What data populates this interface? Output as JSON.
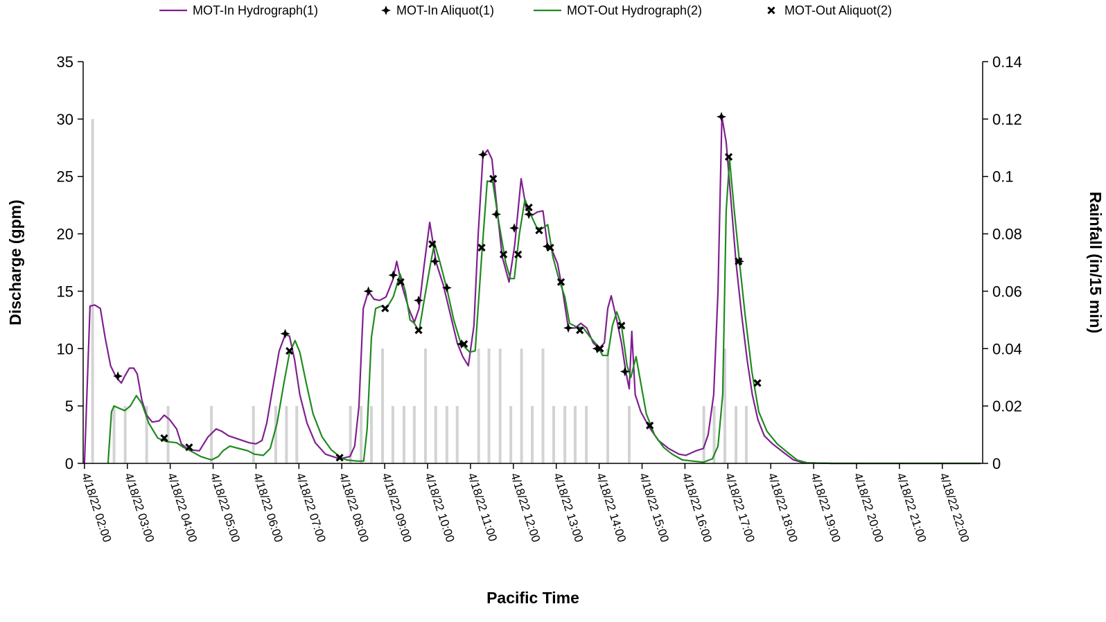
{
  "chart_data": {
    "type": "line",
    "y_label": "Discharge (gpm)",
    "y2_label": "Rainfall (in/15 min)",
    "x_label": "Pacific Time",
    "xlim": [
      1.97,
      22.94
    ],
    "xticks": [
      {
        "value": 2,
        "label": "4/18/22 02:00"
      },
      {
        "value": 3,
        "label": "4/18/22 03:00"
      },
      {
        "value": 4,
        "label": "4/18/22 04:00"
      },
      {
        "value": 5,
        "label": "4/18/22 05:00"
      },
      {
        "value": 6,
        "label": "4/18/22 06:00"
      },
      {
        "value": 7,
        "label": "4/18/22 07:00"
      },
      {
        "value": 8,
        "label": "4/18/22 08:00"
      },
      {
        "value": 9,
        "label": "4/18/22 09:00"
      },
      {
        "value": 10,
        "label": "4/18/22 10:00"
      },
      {
        "value": 11,
        "label": "4/18/22 11:00"
      },
      {
        "value": 12,
        "label": "4/18/22 12:00"
      },
      {
        "value": 13,
        "label": "4/18/22 13:00"
      },
      {
        "value": 14,
        "label": "4/18/22 14:00"
      },
      {
        "value": 15,
        "label": "4/18/22 15:00"
      },
      {
        "value": 16,
        "label": "4/18/22 16:00"
      },
      {
        "value": 17,
        "label": "4/18/22 17:00"
      },
      {
        "value": 18,
        "label": "4/18/22 18:00"
      },
      {
        "value": 19,
        "label": "4/18/22 19:00"
      },
      {
        "value": 20,
        "label": "4/18/22 20:00"
      },
      {
        "value": 21,
        "label": "4/18/22 21:00"
      },
      {
        "value": 22,
        "label": "4/18/22 22:00"
      }
    ],
    "ylim": [
      0,
      35
    ],
    "yticks": [
      0,
      5,
      10,
      15,
      20,
      25,
      30,
      35
    ],
    "y2lim": [
      0,
      0.14
    ],
    "y2ticks": [
      0,
      0.02,
      0.04,
      0.06,
      0.08,
      0.1,
      0.12,
      0.14
    ],
    "series": [
      {
        "type": "bar",
        "axis": "y2",
        "color": "#d3d3d3",
        "x": [
          2.19,
          2.69,
          2.95,
          3.45,
          3.95,
          4.96,
          5.94,
          6.46,
          6.71,
          6.95,
          8.2,
          8.45,
          8.69,
          8.95,
          9.19,
          9.45,
          9.69,
          9.95,
          10.19,
          10.45,
          10.69,
          11.19,
          11.43,
          11.69,
          11.94,
          12.19,
          12.44,
          12.69,
          12.94,
          13.2,
          13.44,
          13.7,
          14.2,
          14.7,
          16.44,
          16.68,
          16.93,
          17.19,
          17.43
        ],
        "values": [
          0.12,
          0.02,
          0.02,
          0.02,
          0.02,
          0.02,
          0.02,
          0.02,
          0.02,
          0.02,
          0.02,
          0.02,
          0.02,
          0.04,
          0.02,
          0.02,
          0.02,
          0.04,
          0.02,
          0.02,
          0.02,
          0.04,
          0.04,
          0.04,
          0.02,
          0.04,
          0.02,
          0.04,
          0.02,
          0.02,
          0.02,
          0.02,
          0.04,
          0.02,
          0.02,
          0.02,
          0.04,
          0.02,
          0.02
        ]
      },
      {
        "type": "line",
        "name": "MOT-In Hydrograph(1)",
        "color": "#7f1f8f",
        "x": [
          2.0,
          2.13,
          2.24,
          2.37,
          2.48,
          2.61,
          2.74,
          2.86,
          2.94,
          3.05,
          3.15,
          3.23,
          3.34,
          3.45,
          3.58,
          3.74,
          3.86,
          3.99,
          4.15,
          4.26,
          4.42,
          4.68,
          4.88,
          5.07,
          5.2,
          5.36,
          5.6,
          5.84,
          6.0,
          6.14,
          6.25,
          6.41,
          6.54,
          6.68,
          6.78,
          6.9,
          7.02,
          7.19,
          7.38,
          7.62,
          7.95,
          8.19,
          8.3,
          8.4,
          8.5,
          8.62,
          8.75,
          8.88,
          9.03,
          9.19,
          9.28,
          9.4,
          9.56,
          9.69,
          9.8,
          9.91,
          10.05,
          10.2,
          10.37,
          10.53,
          10.69,
          10.82,
          10.95,
          11.08,
          11.18,
          11.29,
          11.4,
          11.5,
          11.61,
          11.74,
          11.9,
          12.03,
          12.18,
          12.3,
          12.43,
          12.56,
          12.69,
          12.8,
          12.9,
          13.03,
          13.15,
          13.28,
          13.44,
          13.57,
          13.71,
          13.86,
          14.0,
          14.12,
          14.2,
          14.28,
          14.41,
          14.52,
          14.62,
          14.7,
          14.76,
          14.84,
          14.97,
          15.16,
          15.38,
          15.62,
          15.86,
          16.02,
          16.26,
          16.43,
          16.54,
          16.67,
          16.77,
          16.86,
          16.96,
          17.07,
          17.19,
          17.32,
          17.45,
          17.57,
          17.7,
          17.85,
          18.04,
          18.28,
          18.53,
          18.77,
          19.42,
          22.89
        ],
        "values": [
          0,
          13.7,
          13.8,
          13.5,
          11,
          8.5,
          7.5,
          7,
          7.6,
          8.3,
          8.3,
          7.8,
          5.5,
          4.2,
          3.6,
          3.7,
          4.2,
          3.8,
          3,
          1.7,
          1.2,
          1.1,
          2.3,
          3.0,
          2.8,
          2.4,
          2.1,
          1.8,
          1.7,
          2.0,
          3.5,
          7,
          9.8,
          11.2,
          11.1,
          9,
          6,
          3.5,
          1.8,
          0.8,
          0.4,
          0.6,
          1.5,
          5,
          13.5,
          15,
          14.3,
          14.2,
          14.5,
          16,
          17.6,
          15.5,
          13.5,
          12.3,
          13.5,
          17,
          21,
          17.5,
          15.5,
          13,
          10.5,
          9.3,
          8.5,
          12,
          20,
          26.8,
          27.3,
          26.5,
          22.5,
          18,
          15.8,
          19,
          24.8,
          22.2,
          21.6,
          21.9,
          22.0,
          18.8,
          18.6,
          17.4,
          15,
          11.8,
          11.8,
          12.2,
          11.8,
          10.5,
          10,
          10.5,
          13.5,
          14.6,
          12.5,
          10.5,
          8,
          6.5,
          11.5,
          6,
          4.5,
          3.2,
          2,
          1.3,
          0.8,
          0.7,
          1.1,
          1.3,
          2.5,
          6,
          15,
          30.2,
          28,
          23,
          17.5,
          13,
          9,
          6,
          3.8,
          2.4,
          1.7,
          1.0,
          0.3,
          0.05,
          0,
          0
        ]
      },
      {
        "type": "scatter",
        "marker": "star",
        "name": "MOT-In Aliquot(1)",
        "color": "#000000",
        "x": [
          2.78,
          6.68,
          8.62,
          9.2,
          9.79,
          10.17,
          10.45,
          10.79,
          11.29,
          11.6,
          12.02,
          12.36,
          12.79,
          13.28,
          13.95,
          14.6,
          16.85,
          17.27
        ],
        "values": [
          7.6,
          11.3,
          15.0,
          16.4,
          14.2,
          17.6,
          15.3,
          10.4,
          26.9,
          21.7,
          20.5,
          21.7,
          18.9,
          11.8,
          10.0,
          8.0,
          30.2,
          17.6
        ]
      },
      {
        "type": "line",
        "name": "MOT-Out Hydrograph(2)",
        "color": "#1f8a1f",
        "x": [
          2.55,
          2.63,
          2.69,
          2.81,
          2.94,
          3.07,
          3.21,
          3.34,
          3.5,
          3.71,
          3.91,
          4.15,
          4.31,
          4.47,
          4.71,
          4.96,
          5.12,
          5.23,
          5.39,
          5.6,
          5.81,
          5.96,
          6.17,
          6.33,
          6.49,
          6.65,
          6.78,
          6.91,
          7.02,
          7.17,
          7.33,
          7.54,
          7.75,
          7.98,
          8.11,
          8.35,
          8.51,
          8.59,
          8.69,
          8.79,
          8.92,
          9.04,
          9.2,
          9.36,
          9.48,
          9.59,
          9.69,
          9.8,
          9.91,
          10.05,
          10.16,
          10.29,
          10.45,
          10.61,
          10.77,
          10.98,
          11.11,
          11.26,
          11.39,
          11.52,
          11.66,
          11.82,
          11.93,
          12.02,
          12.14,
          12.27,
          12.4,
          12.55,
          12.69,
          12.8,
          12.92,
          13.05,
          13.2,
          13.31,
          13.47,
          13.63,
          13.79,
          13.95,
          14.08,
          14.2,
          14.31,
          14.41,
          14.52,
          14.65,
          14.74,
          14.86,
          14.97,
          15.1,
          15.29,
          15.5,
          15.7,
          15.94,
          16.18,
          16.43,
          16.64,
          16.77,
          16.88,
          16.96,
          17.04,
          17.15,
          17.27,
          17.4,
          17.56,
          17.72,
          17.91,
          18.15,
          18.41,
          18.61,
          18.85,
          19.42,
          22.89
        ],
        "values": [
          0,
          4.5,
          5,
          4.8,
          4.6,
          5,
          5.9,
          5.2,
          3.5,
          2.2,
          1.9,
          1.8,
          1.4,
          1.1,
          0.6,
          0.3,
          0.6,
          1.1,
          1.5,
          1.3,
          1.1,
          0.8,
          0.7,
          1.3,
          3.5,
          7,
          9.6,
          10.7,
          9.7,
          7,
          4.3,
          2.3,
          1.2,
          0.5,
          0.3,
          0.2,
          0.2,
          3,
          11,
          13.5,
          13.7,
          13.5,
          14.5,
          16.5,
          15,
          12.5,
          12.2,
          11.5,
          14,
          17,
          19.2,
          17.5,
          15.2,
          12.5,
          10.5,
          9.7,
          9.8,
          18,
          24.6,
          24.5,
          21,
          17.5,
          16.1,
          16.1,
          20,
          23,
          21.7,
          20.5,
          20.5,
          20.8,
          18,
          16.2,
          14.5,
          12.2,
          11.9,
          11.8,
          11,
          10.3,
          9.4,
          9.4,
          12,
          13.2,
          12,
          8.5,
          7.5,
          9.3,
          7,
          4.3,
          2.5,
          1.4,
          0.8,
          0.3,
          0.2,
          0.1,
          0.4,
          1.5,
          6,
          22,
          26.5,
          22,
          17.6,
          13,
          8,
          4.5,
          2.8,
          1.7,
          0.9,
          0.3,
          0.05,
          0,
          0
        ]
      },
      {
        "type": "scatter",
        "marker": "x",
        "name": "MOT-Out Aliquot(2)",
        "color": "#000000",
        "x": [
          3.86,
          4.44,
          6.78,
          7.95,
          9.01,
          9.37,
          9.79,
          10.11,
          10.85,
          11.26,
          11.53,
          11.77,
          12.11,
          12.36,
          12.6,
          12.86,
          13.11,
          13.55,
          14.02,
          14.52,
          15.18,
          17.02,
          17.25,
          17.69
        ],
        "values": [
          2.2,
          1.4,
          9.8,
          0.5,
          13.5,
          15.8,
          11.6,
          19.1,
          10.4,
          18.8,
          24.8,
          18.2,
          18.2,
          22.3,
          20.3,
          18.8,
          15.8,
          11.6,
          10.0,
          12.0,
          3.3,
          26.7,
          17.6,
          7.0
        ]
      }
    ]
  }
}
